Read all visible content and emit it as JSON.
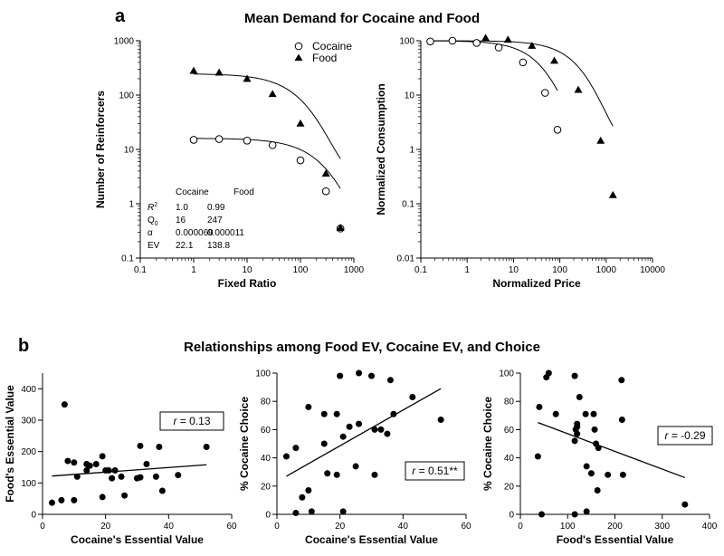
{
  "figure": {
    "panel_a_letter": "a",
    "panel_a_title": "Mean Demand for Cocaine and Food",
    "panel_b_letter": "b",
    "panel_b_title": "Relationships among Food EV, Cocaine EV, and Choice"
  },
  "chart_data": [
    {
      "id": "demand",
      "type": "line",
      "scale": "log-log",
      "title": "",
      "xlabel": "Fixed Ratio",
      "ylabel": "Number of Reinforcers",
      "xlim": [
        0.1,
        1000
      ],
      "ylim": [
        0.1,
        1000
      ],
      "x_ticks": [
        "0.1",
        "1",
        "10",
        "100",
        "1000"
      ],
      "y_ticks": [
        "0.1",
        "1",
        "10",
        "100",
        "1000"
      ],
      "legend": {
        "placement": "top-right",
        "items": [
          "Cocaine",
          "Food"
        ]
      },
      "series": [
        {
          "name": "Cocaine",
          "marker": "open-circle",
          "x": [
            1,
            3,
            10,
            30,
            100,
            300,
            560
          ],
          "y": [
            15,
            15.5,
            14.5,
            12,
            6.3,
            1.7,
            0.35
          ]
        },
        {
          "name": "Food",
          "marker": "filled-triangle",
          "x": [
            1,
            3,
            10,
            30,
            100,
            300,
            560
          ],
          "y": [
            280,
            260,
            200,
            105,
            30,
            3.6,
            0.36
          ]
        }
      ],
      "fits": [
        {
          "name": "Cocaine",
          "Q0": 16,
          "alpha": 6.9e-05
        },
        {
          "name": "Food",
          "Q0": 247,
          "alpha": 1.1e-05
        }
      ],
      "table": {
        "headers": [
          "",
          "Cocaine",
          "Food"
        ],
        "rows": [
          [
            "R2",
            "1.0",
            "0.99"
          ],
          [
            "Q0",
            "16",
            "247"
          ],
          [
            "α",
            "0.000069",
            "0.000011"
          ],
          [
            "EV",
            "22.1",
            "138.8"
          ]
        ]
      }
    },
    {
      "id": "normalized",
      "type": "line",
      "scale": "log-log",
      "title": "",
      "xlabel": "Normalized Price",
      "ylabel": "Normalized Consumption",
      "xlim": [
        0.1,
        10000
      ],
      "ylim": [
        0.01,
        100
      ],
      "x_ticks": [
        "0.1",
        "1",
        "10",
        "100",
        "1000",
        "10000"
      ],
      "y_ticks": [
        "0.01",
        "0.1",
        "1",
        "10",
        "100"
      ],
      "series": [
        {
          "name": "Cocaine",
          "marker": "open-circle",
          "x": [
            0.16,
            0.48,
            1.6,
            4.8,
            16,
            48,
            89
          ],
          "y": [
            97,
            100,
            91,
            75,
            40,
            11,
            2.3
          ]
        },
        {
          "name": "Food",
          "marker": "filled-triangle",
          "x": [
            2.5,
            7.6,
            25,
            76,
            250,
            760,
            1400
          ],
          "y": [
            113,
            105,
            81,
            43,
            12.5,
            1.45,
            0.145
          ]
        }
      ]
    },
    {
      "id": "scatter1",
      "type": "scatter",
      "xlabel": "Cocaine's Essential Value",
      "ylabel": "Food's Essential Value",
      "xlim": [
        0,
        60
      ],
      "ylim": [
        0,
        450
      ],
      "x_ticks": [
        "0",
        "20",
        "40",
        "60"
      ],
      "y_ticks": [
        "0",
        "100",
        "200",
        "300",
        "400"
      ],
      "annotation": "= 0.13",
      "annotation_var": "r",
      "regression": {
        "x": [
          3,
          52
        ],
        "y": [
          122,
          158
        ]
      },
      "points": [
        [
          3,
          37
        ],
        [
          6,
          45
        ],
        [
          7,
          350
        ],
        [
          8,
          170
        ],
        [
          10,
          45
        ],
        [
          10,
          165
        ],
        [
          11,
          120
        ],
        [
          14,
          140
        ],
        [
          14,
          160
        ],
        [
          15,
          155
        ],
        [
          17,
          160
        ],
        [
          19,
          185
        ],
        [
          19,
          55
        ],
        [
          20,
          140
        ],
        [
          21,
          140
        ],
        [
          22,
          115
        ],
        [
          23,
          140
        ],
        [
          25,
          120
        ],
        [
          26,
          60
        ],
        [
          30,
          115
        ],
        [
          31,
          218
        ],
        [
          31,
          118
        ],
        [
          33,
          160
        ],
        [
          36,
          120
        ],
        [
          37,
          215
        ],
        [
          38,
          75
        ],
        [
          43,
          125
        ],
        [
          52,
          215
        ]
      ]
    },
    {
      "id": "scatter2",
      "type": "scatter",
      "xlabel": "Cocaine's Essential Value",
      "ylabel": "% Cocaine Choice",
      "xlim": [
        0,
        60
      ],
      "ylim": [
        0,
        100
      ],
      "x_ticks": [
        "0",
        "20",
        "40",
        "60"
      ],
      "y_ticks": [
        "0",
        "20",
        "40",
        "60",
        "80",
        "100"
      ],
      "annotation": "= 0.51**",
      "annotation_var": "r",
      "regression": {
        "x": [
          3,
          52
        ],
        "y": [
          27,
          89
        ]
      },
      "points": [
        [
          3,
          41
        ],
        [
          6,
          47
        ],
        [
          6,
          1
        ],
        [
          8,
          12
        ],
        [
          10,
          17
        ],
        [
          10,
          76
        ],
        [
          11,
          2
        ],
        [
          15,
          71
        ],
        [
          15,
          50
        ],
        [
          16,
          29
        ],
        [
          19,
          28
        ],
        [
          19,
          71
        ],
        [
          20,
          98
        ],
        [
          21,
          55
        ],
        [
          21,
          2
        ],
        [
          23,
          62
        ],
        [
          25,
          34
        ],
        [
          26,
          100
        ],
        [
          26,
          64
        ],
        [
          30,
          98
        ],
        [
          31,
          60
        ],
        [
          31,
          28
        ],
        [
          33,
          60
        ],
        [
          35,
          57
        ],
        [
          36,
          95
        ],
        [
          37,
          71
        ],
        [
          43,
          83
        ],
        [
          52,
          67
        ]
      ]
    },
    {
      "id": "scatter3",
      "type": "scatter",
      "xlabel": "Food's Essential Value",
      "ylabel": "% Cocaine Choice",
      "xlim": [
        0,
        400
      ],
      "ylim": [
        0,
        100
      ],
      "x_ticks": [
        "0",
        "100",
        "200",
        "300",
        "400"
      ],
      "y_ticks": [
        "0",
        "20",
        "40",
        "60",
        "80",
        "100"
      ],
      "annotation": "= -0.29",
      "annotation_var": "r",
      "regression": {
        "x": [
          37,
          348
        ],
        "y": [
          65,
          26
        ]
      },
      "points": [
        [
          37,
          41
        ],
        [
          40,
          76
        ],
        [
          45,
          0
        ],
        [
          55,
          97
        ],
        [
          60,
          100
        ],
        [
          75,
          71
        ],
        [
          115,
          98
        ],
        [
          115,
          52
        ],
        [
          115,
          0
        ],
        [
          117,
          60
        ],
        [
          120,
          57
        ],
        [
          120,
          62
        ],
        [
          120,
          64
        ],
        [
          125,
          83
        ],
        [
          138,
          71
        ],
        [
          140,
          34
        ],
        [
          140,
          2
        ],
        [
          150,
          29
        ],
        [
          155,
          71
        ],
        [
          157,
          60
        ],
        [
          160,
          50
        ],
        [
          163,
          17
        ],
        [
          165,
          47
        ],
        [
          185,
          28
        ],
        [
          214,
          95
        ],
        [
          215,
          67
        ],
        [
          217,
          28
        ],
        [
          348,
          7
        ]
      ]
    }
  ]
}
